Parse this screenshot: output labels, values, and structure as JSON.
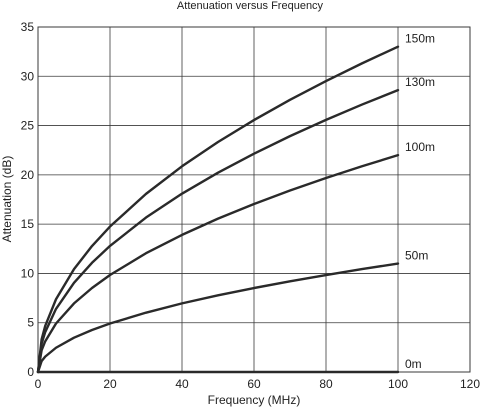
{
  "chart_data": {
    "type": "line",
    "title": "Attenuation versus Frequency",
    "xlabel": "Frequency (MHz)",
    "ylabel": "Attenuation (dB)",
    "xlim": [
      0,
      120
    ],
    "ylim": [
      0,
      35
    ],
    "x_ticks": [
      0,
      20,
      40,
      60,
      80,
      100,
      120
    ],
    "y_ticks": [
      0,
      5,
      10,
      15,
      20,
      25,
      30,
      35
    ],
    "grid": true,
    "x": [
      0,
      1,
      2,
      5,
      10,
      15,
      20,
      30,
      40,
      50,
      60,
      70,
      80,
      90,
      100
    ],
    "series": [
      {
        "name": "150m",
        "values": [
          0,
          3.3,
          4.67,
          7.38,
          10.44,
          12.78,
          14.76,
          18.07,
          20.87,
          23.33,
          25.56,
          27.61,
          29.52,
          31.31,
          33.0
        ]
      },
      {
        "name": "130m",
        "values": [
          0,
          2.86,
          4.05,
          6.4,
          9.05,
          11.08,
          12.79,
          15.67,
          18.09,
          20.22,
          22.15,
          23.93,
          25.58,
          27.13,
          28.6
        ]
      },
      {
        "name": "100m",
        "values": [
          0,
          2.2,
          3.11,
          4.92,
          6.96,
          8.52,
          9.84,
          12.05,
          13.91,
          15.56,
          17.04,
          18.41,
          19.68,
          20.87,
          22.0
        ]
      },
      {
        "name": "50m",
        "values": [
          0,
          1.1,
          1.56,
          2.46,
          3.48,
          4.26,
          4.92,
          6.02,
          6.96,
          7.78,
          8.52,
          9.2,
          9.84,
          10.44,
          11.0
        ]
      },
      {
        "name": "0m",
        "values": [
          0,
          0,
          0,
          0,
          0,
          0,
          0,
          0,
          0,
          0,
          0,
          0,
          0,
          0,
          0
        ]
      }
    ]
  }
}
